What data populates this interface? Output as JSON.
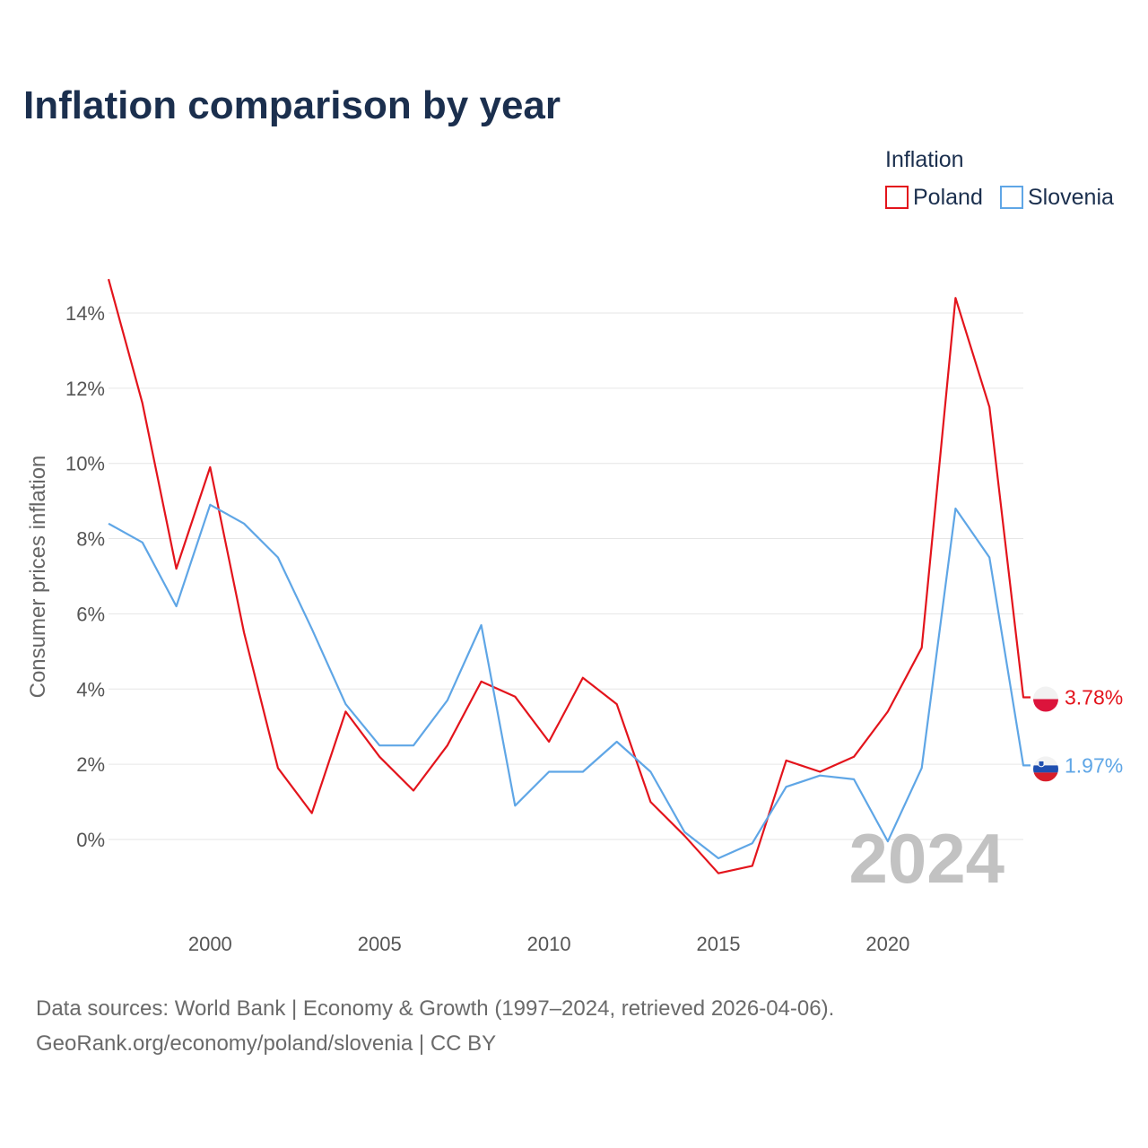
{
  "chart_data": {
    "type": "line",
    "title": "Inflation comparison by year",
    "xlabel": "",
    "ylabel": "Consumer prices inflation",
    "legend_title": "Inflation",
    "legend_position": "top-right",
    "xlim": [
      1997,
      2024
    ],
    "ylim": [
      -2,
      15
    ],
    "x_ticks": [
      2000,
      2005,
      2010,
      2015,
      2020
    ],
    "x_tick_labels": [
      "2000",
      "2005",
      "2010",
      "2015",
      "2020"
    ],
    "y_ticks": [
      0,
      2,
      4,
      6,
      8,
      10,
      12,
      14
    ],
    "y_tick_labels": [
      "0%",
      "2%",
      "4%",
      "6%",
      "8%",
      "10%",
      "12%",
      "14%"
    ],
    "grid": true,
    "watermark_year": "2024",
    "x": [
      1997,
      1998,
      1999,
      2000,
      2001,
      2002,
      2003,
      2004,
      2005,
      2006,
      2007,
      2008,
      2009,
      2010,
      2011,
      2012,
      2013,
      2014,
      2015,
      2016,
      2017,
      2018,
      2019,
      2020,
      2021,
      2022,
      2023,
      2024
    ],
    "series": [
      {
        "name": "Poland",
        "color": "#e3141c",
        "end_label": "3.78%",
        "values": [
          14.9,
          11.6,
          7.2,
          9.9,
          5.5,
          1.9,
          0.7,
          3.4,
          2.2,
          1.3,
          2.5,
          4.2,
          3.8,
          2.6,
          4.3,
          3.6,
          1.0,
          0.1,
          -0.9,
          -0.7,
          2.1,
          1.8,
          2.2,
          3.4,
          5.1,
          14.4,
          11.5,
          3.78
        ]
      },
      {
        "name": "Slovenia",
        "color": "#5fa6e6",
        "end_label": "1.97%",
        "values": [
          8.4,
          7.9,
          6.2,
          8.9,
          8.4,
          7.5,
          5.6,
          3.6,
          2.5,
          2.5,
          3.7,
          5.7,
          0.9,
          1.8,
          1.8,
          2.6,
          1.8,
          0.2,
          -0.5,
          -0.1,
          1.4,
          1.7,
          1.6,
          -0.05,
          1.9,
          8.8,
          7.5,
          1.97
        ]
      }
    ],
    "source_line1": "Data sources: World Bank | Economy & Growth (1997–2024, retrieved 2026-04-06).",
    "source_line2": "GeoRank.org/economy/poland/slovenia | CC BY"
  }
}
